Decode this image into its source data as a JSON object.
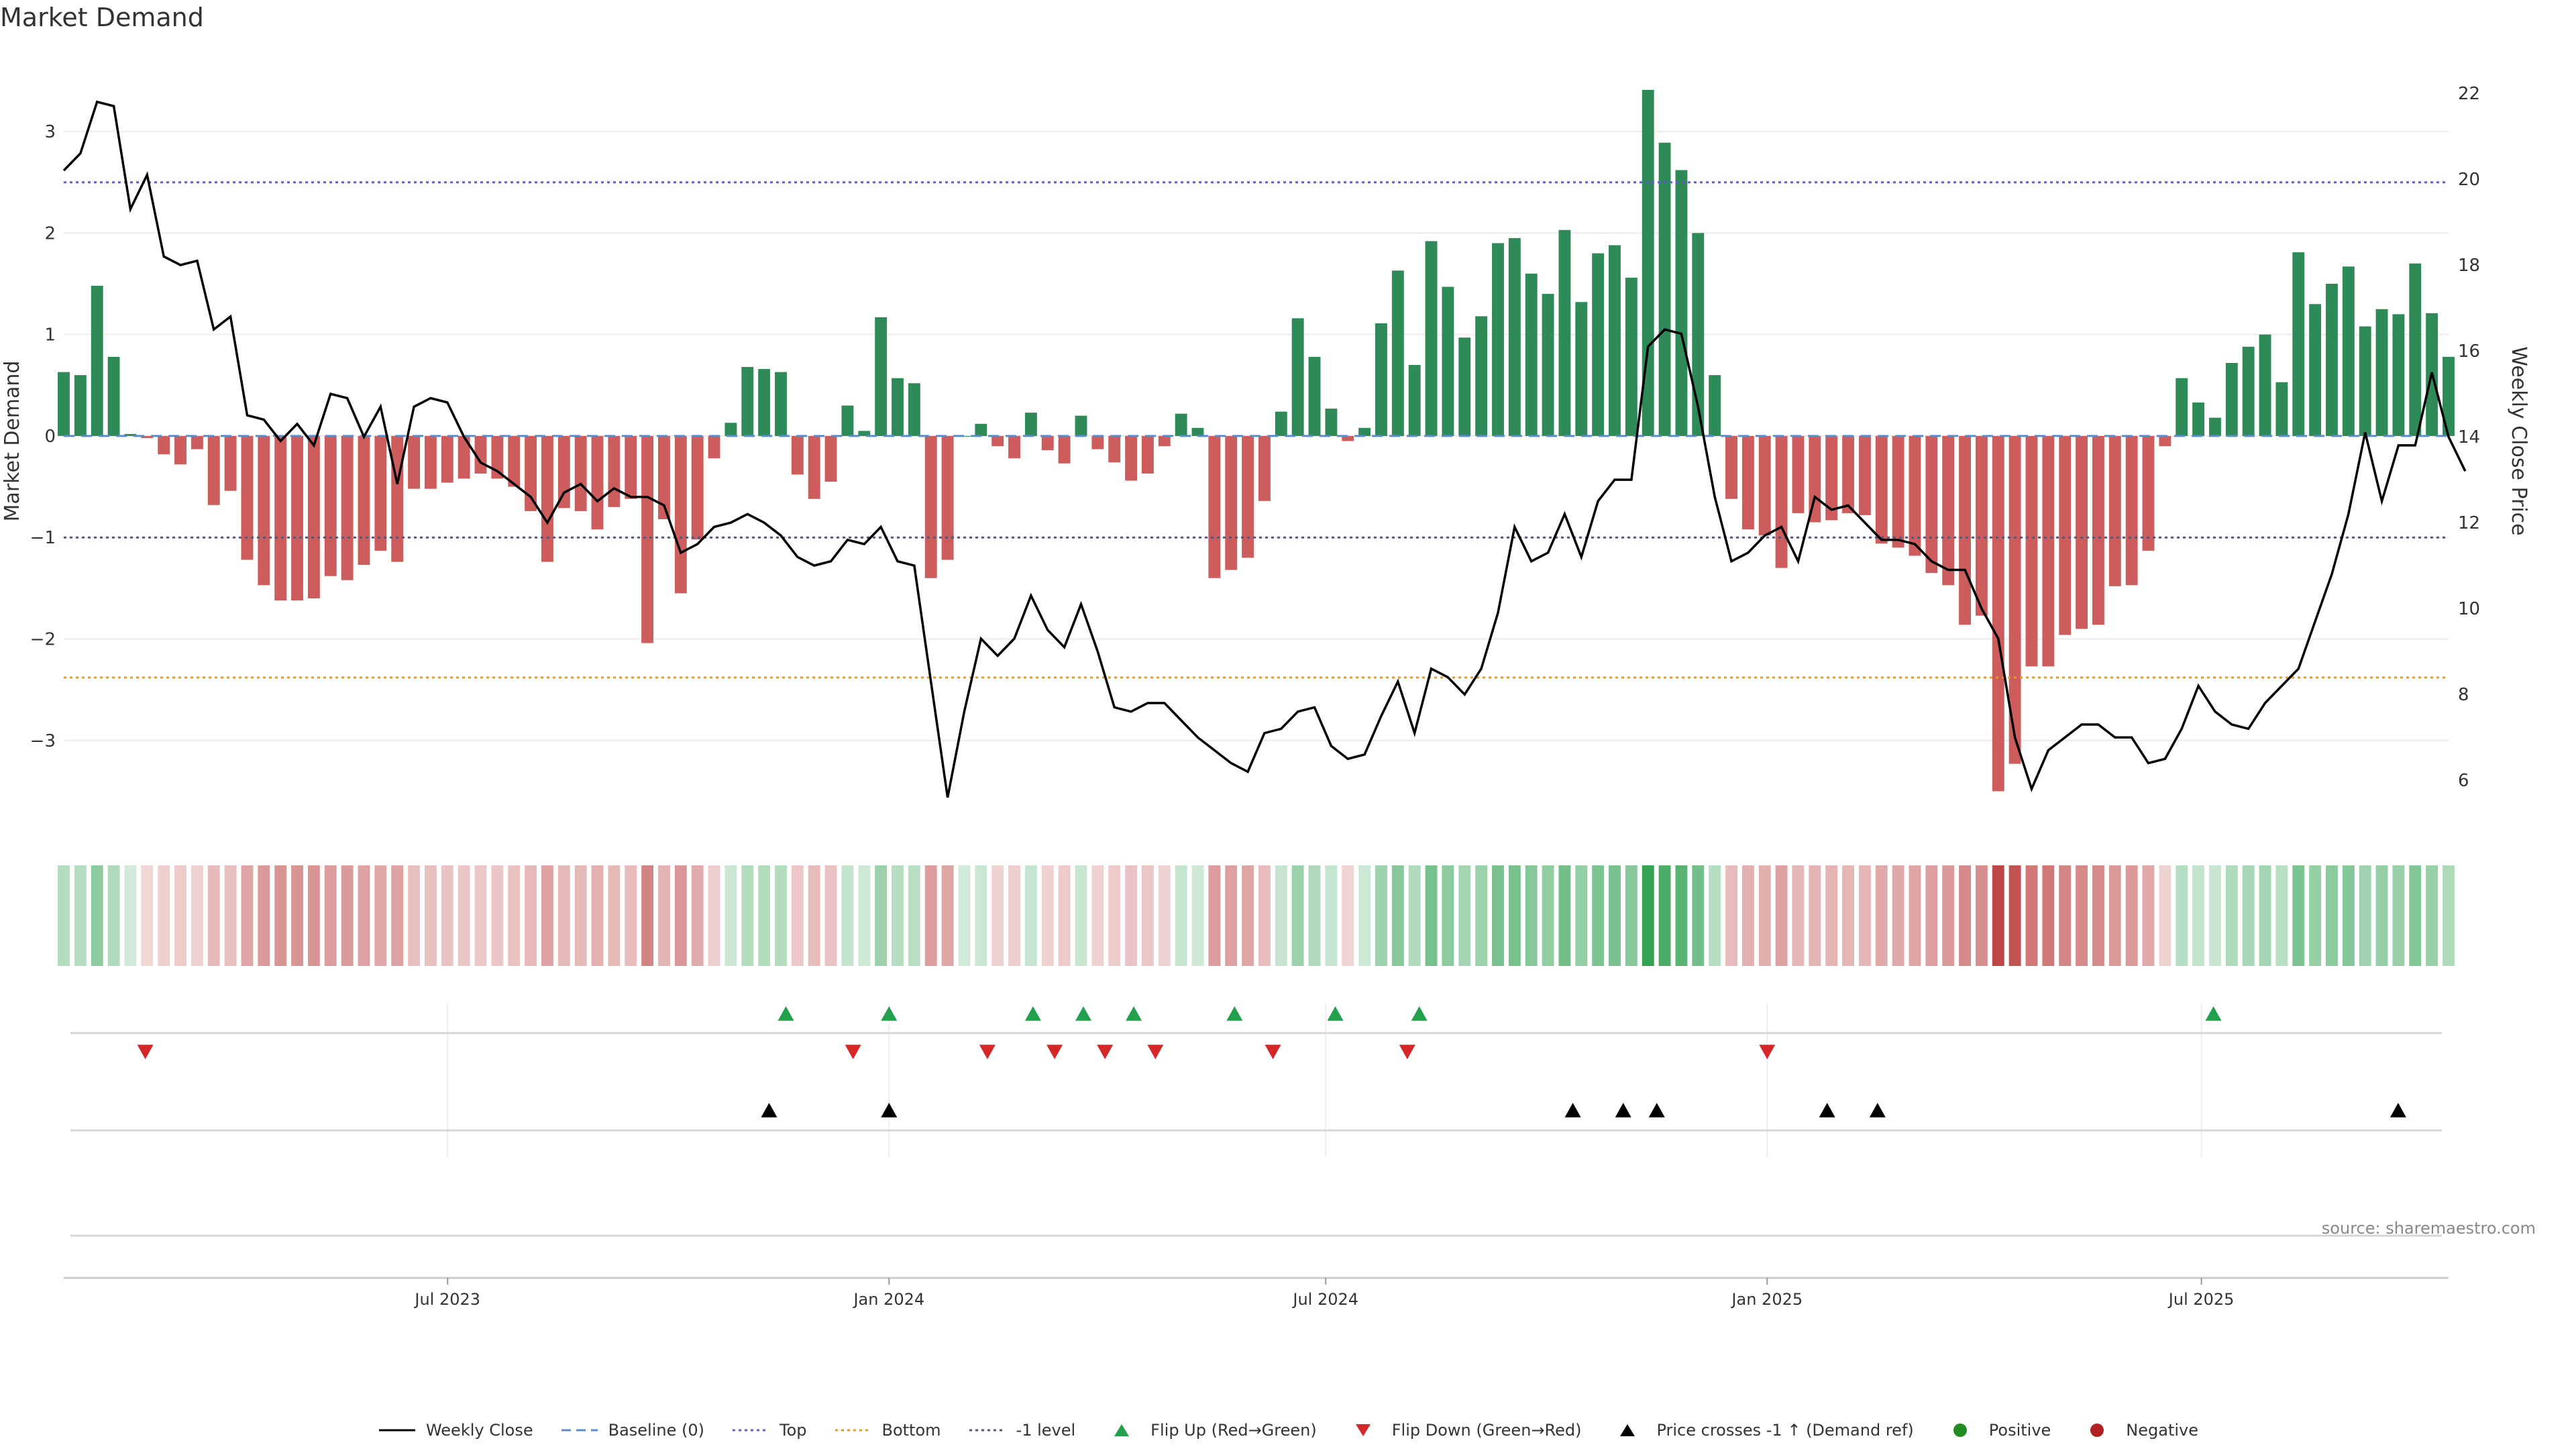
{
  "title": "Market Demand",
  "source": "source: sharemaestro.com",
  "colors": {
    "positive_bar": "#2e8b57",
    "negative_bar": "#cd5c5c",
    "close_line": "#000000",
    "baseline": "#5b8cc8",
    "top": "#6a5acd",
    "bottom": "#e69a2e",
    "minus1": "#555577",
    "flip_up": "#22a04b",
    "flip_down": "#d62728",
    "cross": "#000000",
    "positive_dot": "#228b22",
    "negative_dot": "#b22222"
  },
  "legend": [
    {
      "label": "Weekly Close",
      "kind": "line",
      "color": "#000000"
    },
    {
      "label": "Baseline (0)",
      "kind": "dash",
      "color": "#5b8cc8"
    },
    {
      "label": "Top",
      "kind": "dot",
      "color": "#6a5acd"
    },
    {
      "label": "Bottom",
      "kind": "dot",
      "color": "#e69a2e"
    },
    {
      "label": "-1 level",
      "kind": "dot",
      "color": "#555577"
    },
    {
      "label": "Flip Up (Red→Green)",
      "kind": "tri-up",
      "color": "#22a04b"
    },
    {
      "label": "Flip Down (Green→Red)",
      "kind": "tri-down",
      "color": "#d62728"
    },
    {
      "label": "Price crosses -1 ↑ (Demand ref)",
      "kind": "tri-up",
      "color": "#000000"
    },
    {
      "label": "Positive",
      "kind": "circle",
      "color": "#228b22"
    },
    {
      "label": "Negative",
      "kind": "circle",
      "color": "#b22222"
    }
  ],
  "chart_data": {
    "type": "bar",
    "ylabel": "Market Demand",
    "ylabel_right": "Weekly Close Price",
    "ylim": [
      -3.9,
      3.8
    ],
    "ylim_right": [
      4.8,
      23.0
    ],
    "yticks": [
      "−3",
      "−2",
      "−1",
      "0",
      "1",
      "2",
      "3"
    ],
    "yticks_right": [
      "6",
      "8",
      "10",
      "12",
      "14",
      "16",
      "18",
      "20",
      "22"
    ],
    "x_start": "2023-01-22",
    "x_end": "2025-10-12",
    "xticks": [
      {
        "date": "2023-07-01",
        "label": "Jul 2023"
      },
      {
        "date": "2024-01-01",
        "label": "Jan 2024"
      },
      {
        "date": "2024-07-01",
        "label": "Jul 2024"
      },
      {
        "date": "2025-01-01",
        "label": "Jan 2025"
      },
      {
        "date": "2025-07-01",
        "label": "Jul 2025"
      }
    ],
    "reference_lines": {
      "top": 2.5,
      "bottom": -2.38,
      "minus1": -1.0,
      "baseline": 0
    },
    "series": [
      {
        "name": "Market Demand",
        "values": [
          0.63,
          0.6,
          1.48,
          0.78,
          0.02,
          -0.02,
          -0.18,
          -0.28,
          -0.13,
          -0.68,
          -0.54,
          -1.22,
          -1.47,
          -1.62,
          -1.62,
          -1.6,
          -1.38,
          -1.42,
          -1.27,
          -1.13,
          -1.24,
          -0.52,
          -0.52,
          -0.46,
          -0.42,
          -0.37,
          -0.42,
          -0.5,
          -0.74,
          -1.24,
          -0.71,
          -0.74,
          -0.92,
          -0.7,
          -0.62,
          -2.04,
          -0.82,
          -1.55,
          -1.02,
          -0.22,
          0.13,
          0.68,
          0.66,
          0.63,
          -0.38,
          -0.62,
          -0.45,
          0.3,
          0.05,
          1.17,
          0.57,
          0.52,
          -1.4,
          -1.22,
          0.0,
          0.12,
          -0.1,
          -0.22,
          0.23,
          -0.14,
          -0.27,
          0.2,
          -0.13,
          -0.26,
          -0.44,
          -0.37,
          -0.1,
          0.22,
          0.08,
          -1.4,
          -1.32,
          -1.2,
          -0.64,
          0.24,
          1.16,
          0.78,
          0.27,
          -0.05,
          0.08,
          1.11,
          1.63,
          0.7,
          1.92,
          1.47,
          0.97,
          1.18,
          1.9,
          1.95,
          1.6,
          1.4,
          2.03,
          1.32,
          1.8,
          1.88,
          1.56,
          3.41,
          2.89,
          2.62,
          2.0,
          0.6,
          -0.62,
          -0.92,
          -0.98,
          -1.3,
          -0.76,
          -0.85,
          -0.83,
          -0.76,
          -0.78,
          -1.06,
          -1.1,
          -1.18,
          -1.35,
          -1.47,
          -1.86,
          -1.77,
          -3.5,
          -3.23,
          -2.27,
          -2.27,
          -1.96,
          -1.9,
          -1.86,
          -1.48,
          -1.47,
          -1.13,
          -0.1,
          0.57,
          0.33,
          0.18,
          0.72,
          0.88,
          1.0,
          0.53,
          1.81,
          1.3,
          1.5,
          1.67,
          1.08,
          1.25,
          1.2,
          1.7,
          1.21,
          0.78
        ]
      },
      {
        "name": "Weekly Close",
        "values": [
          20.2,
          20.6,
          21.8,
          21.7,
          19.3,
          20.1,
          18.2,
          18.0,
          18.1,
          16.5,
          16.8,
          14.5,
          14.4,
          13.9,
          14.3,
          13.8,
          15.0,
          14.9,
          14.0,
          14.7,
          12.9,
          14.7,
          14.9,
          14.8,
          14.0,
          13.4,
          13.2,
          12.9,
          12.6,
          12.0,
          12.7,
          12.9,
          12.5,
          12.8,
          12.6,
          12.6,
          12.4,
          11.3,
          11.5,
          11.9,
          12.0,
          12.2,
          12.0,
          11.7,
          11.2,
          11.0,
          11.1,
          11.6,
          11.5,
          11.9,
          11.1,
          11.0,
          8.3,
          5.6,
          7.6,
          9.3,
          8.9,
          9.3,
          10.3,
          9.5,
          9.1,
          10.1,
          9.0,
          7.7,
          7.6,
          7.8,
          7.8,
          7.4,
          7.0,
          6.7,
          6.4,
          6.2,
          7.1,
          7.2,
          7.6,
          7.7,
          6.8,
          6.5,
          6.6,
          7.5,
          8.3,
          7.1,
          8.6,
          8.4,
          8.0,
          8.6,
          9.9,
          11.9,
          11.1,
          11.3,
          12.2,
          11.2,
          12.5,
          13.0,
          13.0,
          16.1,
          16.5,
          16.4,
          14.7,
          12.6,
          11.1,
          11.3,
          11.7,
          11.9,
          11.1,
          12.6,
          12.3,
          12.4,
          12.0,
          11.6,
          11.6,
          11.5,
          11.1,
          10.9,
          10.9,
          10.0,
          9.3,
          7.0,
          5.8,
          6.7,
          7.0,
          7.3,
          7.3,
          7.0,
          7.0,
          6.4,
          6.5,
          7.2,
          8.2,
          7.6,
          7.3,
          7.2,
          7.8,
          8.2,
          8.6,
          9.7,
          10.8,
          12.2,
          14.1,
          12.5,
          13.8,
          13.8,
          15.5,
          14.0,
          13.2
        ]
      }
    ],
    "flip_up_dates": [
      "2023-11-19",
      "2024-01-01",
      "2024-03-01",
      "2024-03-22",
      "2024-04-12",
      "2024-05-24",
      "2024-07-05",
      "2024-08-09",
      "2025-07-06"
    ],
    "flip_down_dates": [
      "2023-02-25",
      "2023-12-17",
      "2024-02-11",
      "2024-03-10",
      "2024-03-31",
      "2024-04-21",
      "2024-06-09",
      "2024-08-04",
      "2025-01-01"
    ],
    "cross_up_dates": [
      "2023-11-12",
      "2024-01-01",
      "2024-10-12",
      "2024-11-02",
      "2024-11-16",
      "2025-01-26",
      "2025-02-16",
      "2025-09-21"
    ]
  }
}
